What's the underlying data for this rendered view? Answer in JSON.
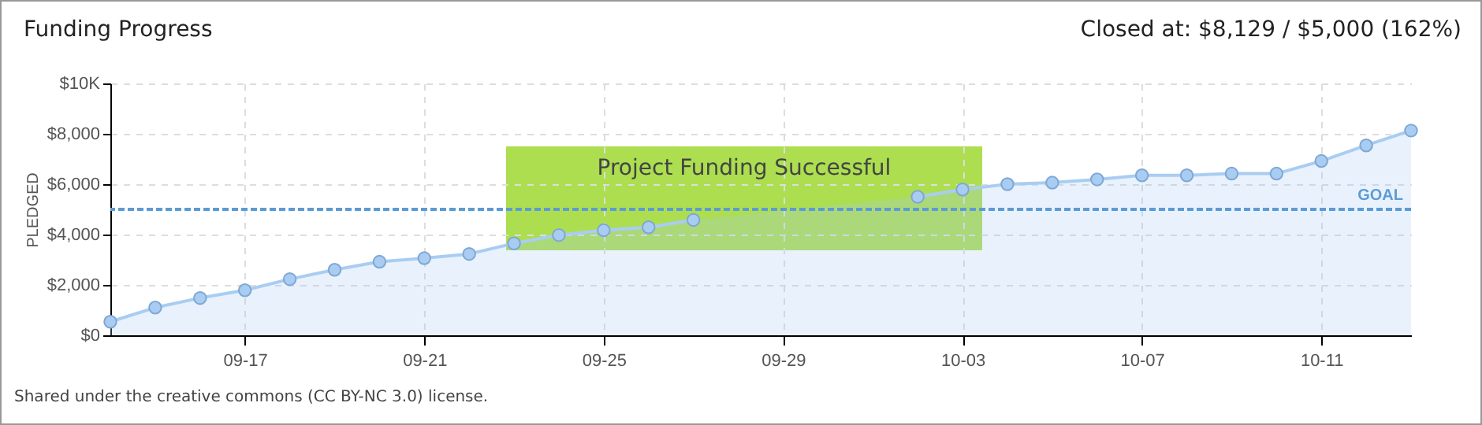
{
  "chart_data": {
    "type": "area",
    "title": "Funding Progress",
    "subtitle": "Closed at: $8,129 / $5,000 (162%)",
    "ylabel": "PLEDGED",
    "x": [
      "--09-14",
      "--09-15",
      "--09-16",
      "--09-17",
      "--09-18",
      "--09-19",
      "--09-20",
      "--09-21",
      "--09-22",
      "--09-23",
      "--09-24",
      "--09-25",
      "--09-26",
      "--09-27",
      "--09-28",
      "--09-29",
      "--09-30",
      "--10-01",
      "--10-02",
      "--10-03",
      "--10-04",
      "--10-05",
      "--10-06",
      "--10-07",
      "--10-08",
      "--10-09",
      "--10-10",
      "--10-11",
      "--10-12",
      "--10-13"
    ],
    "series": [
      {
        "color": "#a9cdf2",
        "values": [
          540,
          1100,
          1480,
          1790,
          2230,
          2600,
          2920,
          3060,
          3230,
          3650,
          3980,
          4170,
          4290,
          4580,
          null,
          null,
          null,
          null,
          5500,
          5790,
          6000,
          6060,
          6190,
          6350,
          6350,
          6420,
          6420,
          6920,
          7540,
          8129
        ]
      }
    ],
    "xlim": [
      "--09-14",
      "--10-13"
    ],
    "xticks": [
      {
        "value": "--09-17",
        "label": "09-17"
      },
      {
        "value": "--09-21",
        "label": "09-21"
      },
      {
        "value": "--09-25",
        "label": "09-25"
      },
      {
        "value": "--09-29",
        "label": "09-29"
      },
      {
        "value": "--10-03",
        "label": "10-03"
      },
      {
        "value": "--10-07",
        "label": "10-07"
      },
      {
        "value": "--10-11",
        "label": "10-11"
      }
    ],
    "ylim": [
      0,
      10000
    ],
    "yticks": [
      {
        "value": 0,
        "label": "$0"
      },
      {
        "value": 2000,
        "label": "$2,000"
      },
      {
        "value": 4000,
        "label": "$4,000"
      },
      {
        "value": 6000,
        "label": "$6,000"
      },
      {
        "value": 8000,
        "label": "$8,000"
      },
      {
        "value": 10000,
        "label": "$10K"
      }
    ],
    "ref_lines": [
      {
        "axis": "y",
        "value": 5000,
        "label": "GOAL",
        "color": "#5b9bd5",
        "line_style": "dashed"
      }
    ],
    "annotations": [
      "Project Funding Successful",
      "Shared under the creative commons (CC BY-NC 3.0) license."
    ],
    "grid": true,
    "marker": "circle"
  }
}
